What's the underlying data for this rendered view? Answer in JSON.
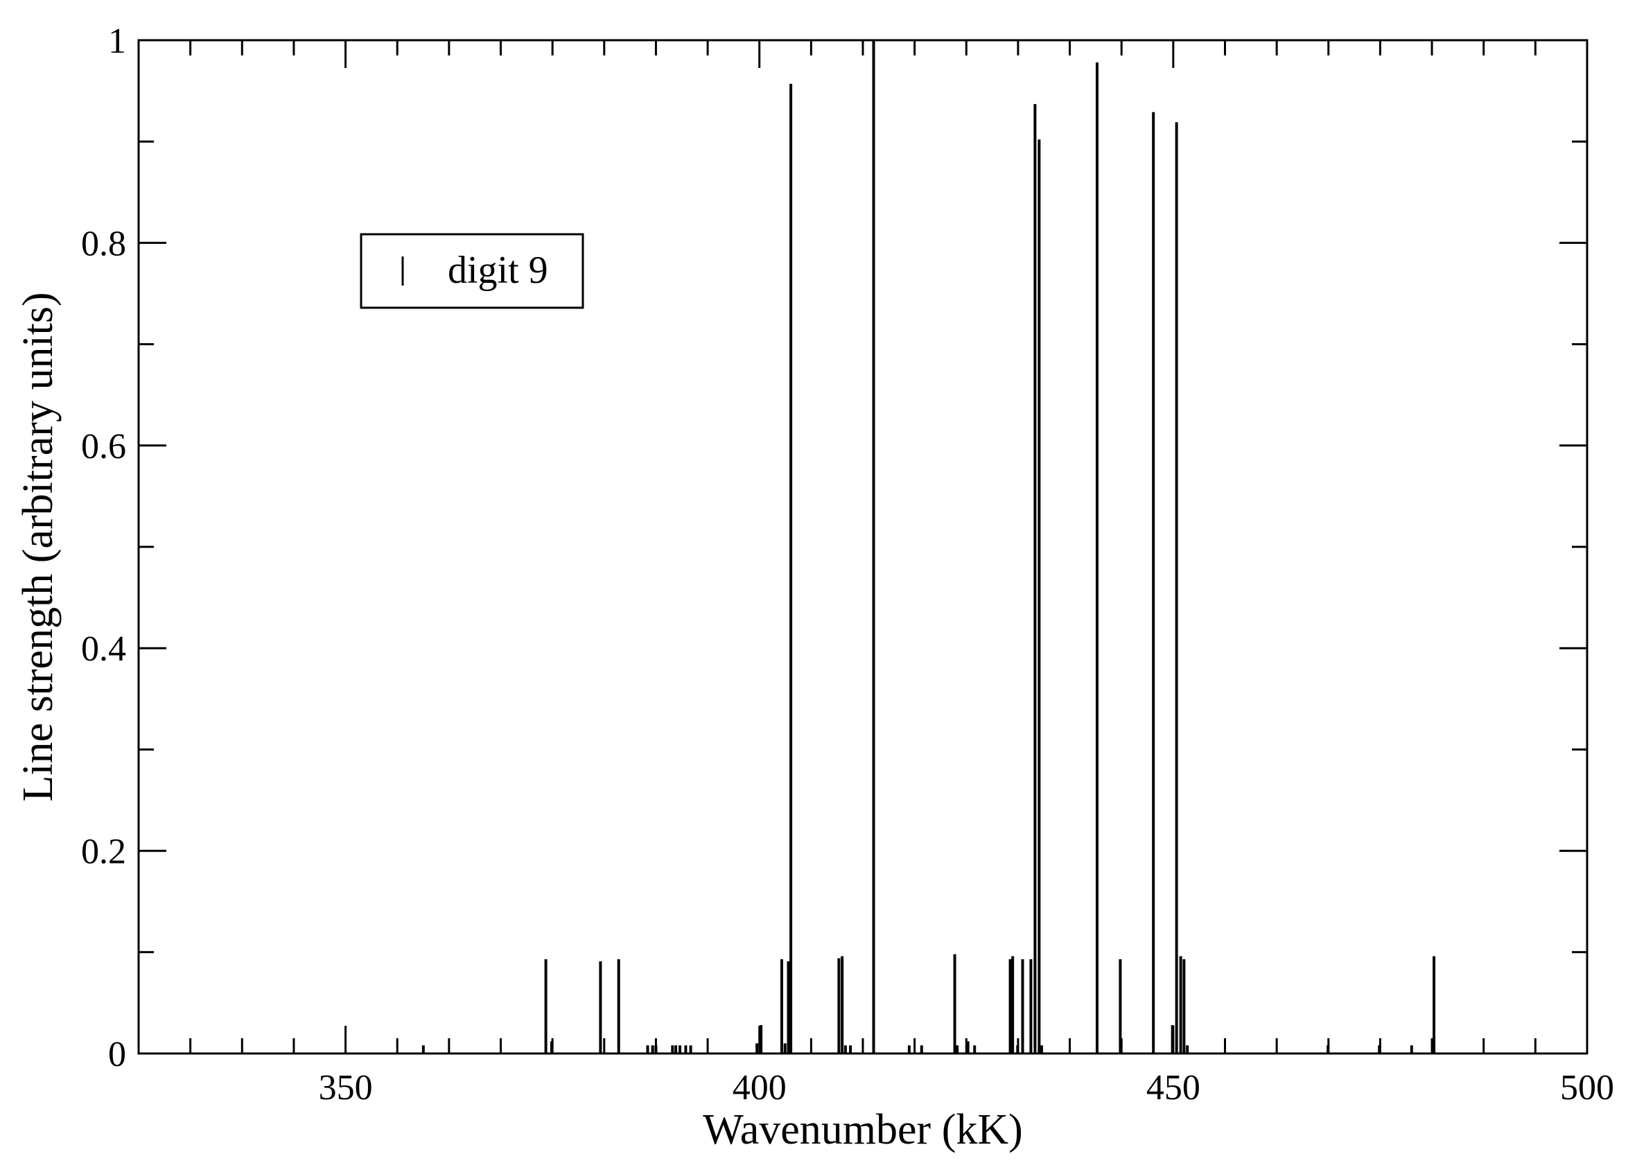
{
  "chart_data": {
    "type": "bar",
    "subtype": "stick-spectrum",
    "title": "",
    "xlabel": "Wavenumber (kK)",
    "ylabel": "Line strength (arbitrary units)",
    "xlim": [
      325,
      500
    ],
    "ylim": [
      0,
      1
    ],
    "x_ticks": [
      350,
      400,
      450,
      500
    ],
    "x_minor_step": 6.25,
    "y_ticks": [
      0,
      0.2,
      0.4,
      0.6,
      0.8,
      1
    ],
    "y_tick_labels": [
      "0",
      "0.2",
      "0.4",
      "0.6",
      "0.8",
      "1"
    ],
    "y_minor_step": 0.1,
    "grid": false,
    "legend": {
      "position": "top-left",
      "entries": [
        "digit 9"
      ]
    },
    "colors": {
      "lines": "#000000",
      "frame": "#000000",
      "background": "#ffffff"
    },
    "series": [
      {
        "name": "digit 9",
        "x": [
          359.4,
          374.2,
          374.9,
          380.8,
          383.0,
          386.5,
          387.1,
          387.5,
          389.5,
          389.9,
          390.4,
          391.1,
          391.7,
          399.7,
          400.2,
          402.7,
          403.1,
          403.5,
          403.8,
          409.6,
          410.0,
          410.4,
          411.0,
          413.8,
          418.1,
          419.6,
          423.6,
          423.9,
          425.2,
          426.0,
          430.3,
          430.6,
          431.2,
          431.8,
          432.8,
          433.3,
          433.8,
          434.1,
          440.8,
          443.6,
          447.6,
          449.9,
          450.4,
          450.9,
          451.3,
          451.7,
          468.7,
          474.9,
          478.8,
          481.5
        ],
        "values": [
          0.008,
          0.093,
          0.012,
          0.091,
          0.093,
          0.008,
          0.008,
          0.008,
          0.008,
          0.008,
          0.008,
          0.008,
          0.008,
          0.01,
          0.028,
          0.093,
          0.01,
          0.091,
          0.957,
          0.094,
          0.096,
          0.008,
          0.008,
          1.0,
          0.008,
          0.008,
          0.098,
          0.008,
          0.012,
          0.008,
          0.093,
          0.096,
          0.008,
          0.093,
          0.093,
          0.937,
          0.902,
          0.008,
          0.978,
          0.093,
          0.929,
          0.028,
          0.919,
          0.096,
          0.093,
          0.008,
          0.008,
          0.008,
          0.008,
          0.096
        ]
      }
    ]
  }
}
